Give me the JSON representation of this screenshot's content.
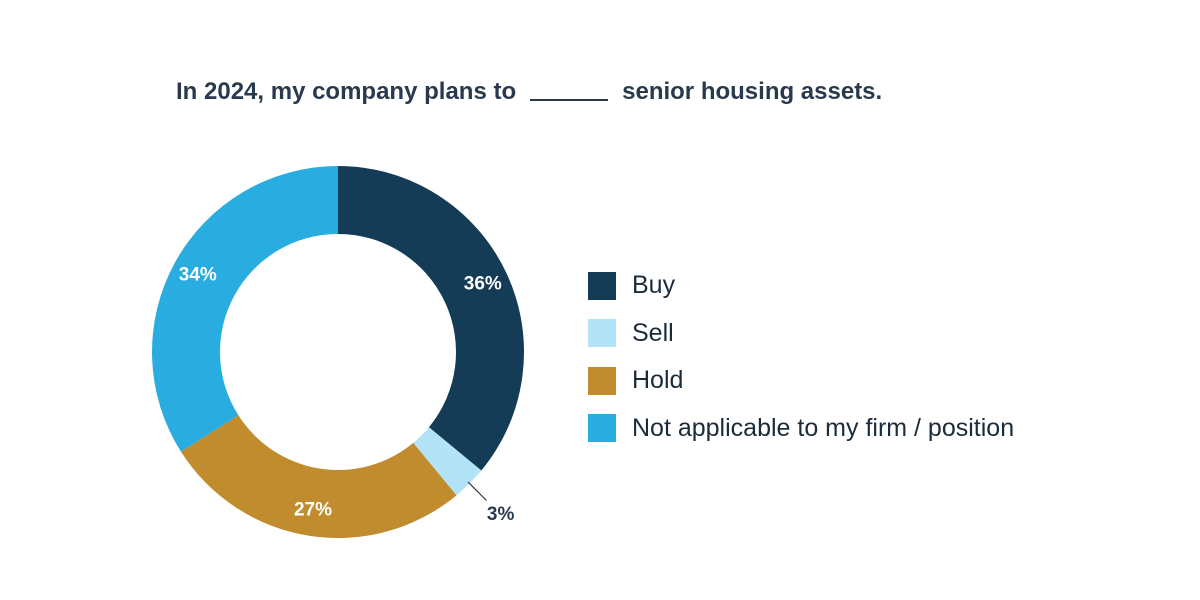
{
  "title": {
    "before_blank": "In 2024, my company plans to",
    "after_blank": "senior housing assets."
  },
  "chart_data": {
    "type": "pie",
    "donut": true,
    "categories": [
      "Buy",
      "Sell",
      "Hold",
      "Not applicable to my firm / position"
    ],
    "values": [
      36,
      3,
      27,
      34
    ],
    "data_labels": [
      "36%",
      "3%",
      "27%",
      "34%"
    ],
    "colors": [
      "#143c57",
      "#b3e3f6",
      "#c08c2e",
      "#29ade1"
    ],
    "label_colors": [
      "#ffffff",
      "#2a3a4e",
      "#ffffff",
      "#ffffff"
    ],
    "legend_position": "right"
  }
}
